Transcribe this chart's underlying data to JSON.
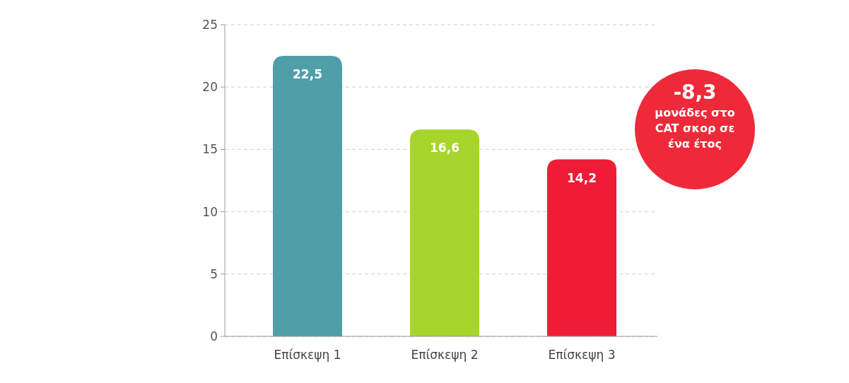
{
  "chart_data": {
    "type": "bar",
    "categories": [
      "Επίσκεψη 1",
      "Επίσκεψη 2",
      "Επίσκεψη 3"
    ],
    "values": [
      22.5,
      16.6,
      14.2
    ],
    "colors": [
      "#4f9fa8",
      "#a8d52b",
      "#ee1c36"
    ],
    "value_labels": [
      "22,5",
      "16,6",
      "14,2"
    ],
    "ylim": [
      0,
      25
    ],
    "yticks": [
      0,
      5,
      10,
      15,
      20,
      25
    ],
    "grid": "y",
    "annotations": [
      "-8,3",
      "μονάδες στο CAT σκορ σε ένα έτος"
    ]
  }
}
